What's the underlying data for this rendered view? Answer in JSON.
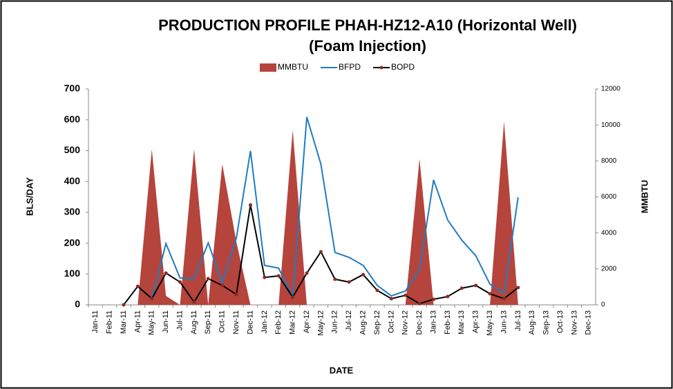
{
  "chart_data": {
    "type": "combo",
    "title": [
      "PRODUCTION PROFILE PHAH-HZ12-A10 (Horizontal Well)",
      "(Foam Injection)"
    ],
    "x_label": "DATE",
    "y_label": "BLS/DAY",
    "y2_label": "MMBTU",
    "categories": [
      "Jan-11",
      "Feb-11",
      "Mar-11",
      "Apr-11",
      "May-11",
      "Jun-11",
      "Jul-11",
      "Aug-11",
      "Sep-11",
      "Oct-11",
      "Nov-11",
      "Dec-11",
      "Jan-12",
      "Feb-12",
      "Mar-12",
      "Apr-12",
      "May-12",
      "Jun-12",
      "Jul-12",
      "Aug-12",
      "Sep-12",
      "Oct-12",
      "Nov-12",
      "Dec-12",
      "Jan-13",
      "Feb-13",
      "Mar-13",
      "Apr-13",
      "May-13",
      "Jun-13",
      "Jul-13",
      "Aug-13",
      "Sep-13",
      "Oct-13",
      "Nov-13",
      "Dec-13"
    ],
    "series": [
      {
        "name": "MMBTU",
        "kind": "area",
        "axis": "y2",
        "color": "#b5443c",
        "values": [
          null,
          null,
          null,
          0,
          8660,
          500,
          0,
          8660,
          0,
          7820,
          3500,
          0,
          0,
          0,
          9730,
          0,
          0,
          0,
          0,
          0,
          0,
          0,
          0,
          8120,
          0,
          0,
          0,
          0,
          0,
          10190,
          0,
          null,
          null,
          null,
          null,
          null
        ]
      },
      {
        "name": "BFPD",
        "kind": "line",
        "color": "#1f7bc2",
        "values": [
          null,
          null,
          null,
          60,
          20,
          199,
          87,
          85,
          201,
          72,
          217,
          499,
          128,
          119,
          25,
          609,
          456,
          170,
          154,
          128,
          63,
          29,
          45,
          114,
          405,
          275,
          210,
          159,
          67,
          38,
          349,
          null,
          null,
          null,
          null,
          null
        ]
      },
      {
        "name": "BOPD",
        "kind": "line-marker",
        "color": "#000000",
        "marker_color": "#8b2a22",
        "values": [
          null,
          null,
          0,
          60,
          20,
          103,
          74,
          9,
          85,
          63,
          34,
          324,
          89,
          94,
          25,
          103,
          172,
          83,
          74,
          98,
          47,
          20,
          31,
          4,
          18,
          27,
          54,
          63,
          36,
          20,
          56,
          null,
          null,
          null,
          null,
          null
        ]
      }
    ],
    "ylim": [
      0,
      700
    ],
    "yticks": [
      0,
      100,
      200,
      300,
      400,
      500,
      600,
      700
    ],
    "y2lim": [
      0,
      12000
    ],
    "y2ticks": [
      0,
      2000,
      4000,
      6000,
      8000,
      10000,
      12000
    ],
    "legend": "top"
  }
}
